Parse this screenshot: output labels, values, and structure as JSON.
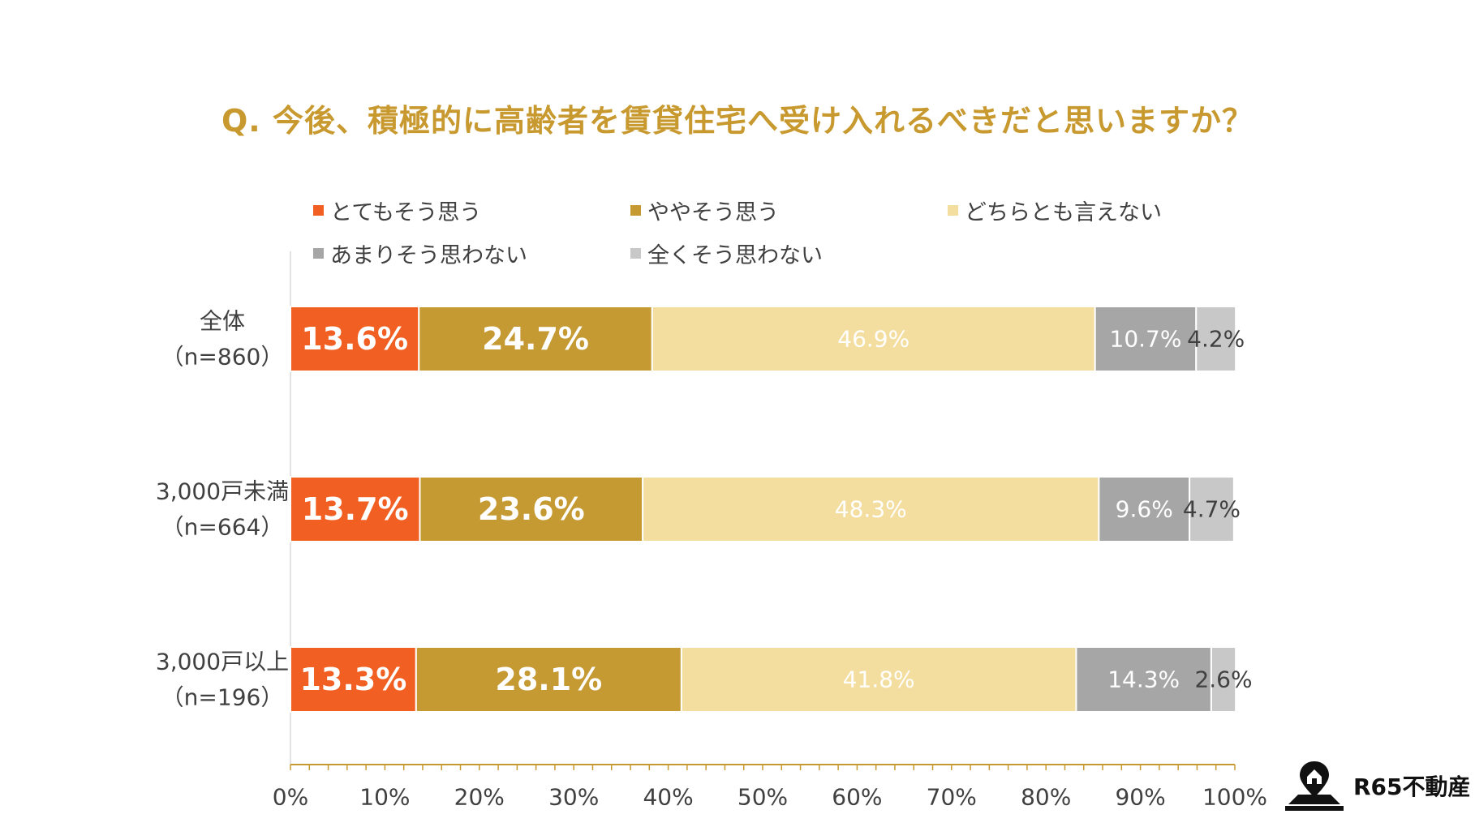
{
  "chart_data": {
    "type": "bar",
    "orientation": "horizontal",
    "stacked": true,
    "title": "Q. 今後、積極的に高齢者を賃貸住宅へ受け入れるべきだと思いますか？",
    "legend_position": "top",
    "categories": [
      {
        "name": "全体",
        "n": "（n=860）"
      },
      {
        "name": "3,000戸未満",
        "n": "（n=664）"
      },
      {
        "name": "3,000戸以上",
        "n": "（n=196）"
      }
    ],
    "series": [
      {
        "name": "とてもそう思う",
        "color": "#f15f22",
        "label_color": "#ffffff",
        "bold": true,
        "values": [
          13.6,
          13.7,
          13.3
        ],
        "labels": [
          "13.6%",
          "13.7%",
          "13.3%"
        ]
      },
      {
        "name": "ややそう思う",
        "color": "#c69a33",
        "label_color": "#ffffff",
        "bold": true,
        "values": [
          24.7,
          23.6,
          28.1
        ],
        "labels": [
          "24.7%",
          "23.6%",
          "28.1%"
        ]
      },
      {
        "name": "どちらとも言えない",
        "color": "#f3dea0",
        "label_color": "#ffffff",
        "bold": false,
        "values": [
          46.9,
          48.3,
          41.8
        ],
        "labels": [
          "46.9%",
          "48.3%",
          "41.8%"
        ]
      },
      {
        "name": "あまりそう思わない",
        "color": "#a6a6a6",
        "label_color": "#ffffff",
        "bold": false,
        "values": [
          10.7,
          9.6,
          14.3
        ],
        "labels": [
          "10.7%",
          "9.6%",
          "14.3%"
        ]
      },
      {
        "name": "全くそう思わない",
        "color": "#c8c8c8",
        "label_color": "#404040",
        "bold": false,
        "values": [
          4.2,
          4.7,
          2.6
        ],
        "labels": [
          "4.2%",
          "4.7%",
          "2.6%"
        ]
      }
    ],
    "xlim": [
      0,
      100
    ],
    "xticks": [
      0,
      10,
      20,
      30,
      40,
      50,
      60,
      70,
      80,
      90,
      100
    ],
    "xtick_labels": [
      "0%",
      "10%",
      "20%",
      "30%",
      "40%",
      "50%",
      "60%",
      "70%",
      "80%",
      "90%",
      "100%"
    ],
    "axis_color": "#c69a33",
    "grid": false
  },
  "brand": {
    "name": "R65不動産",
    "icon": "map-pin-house-icon"
  }
}
